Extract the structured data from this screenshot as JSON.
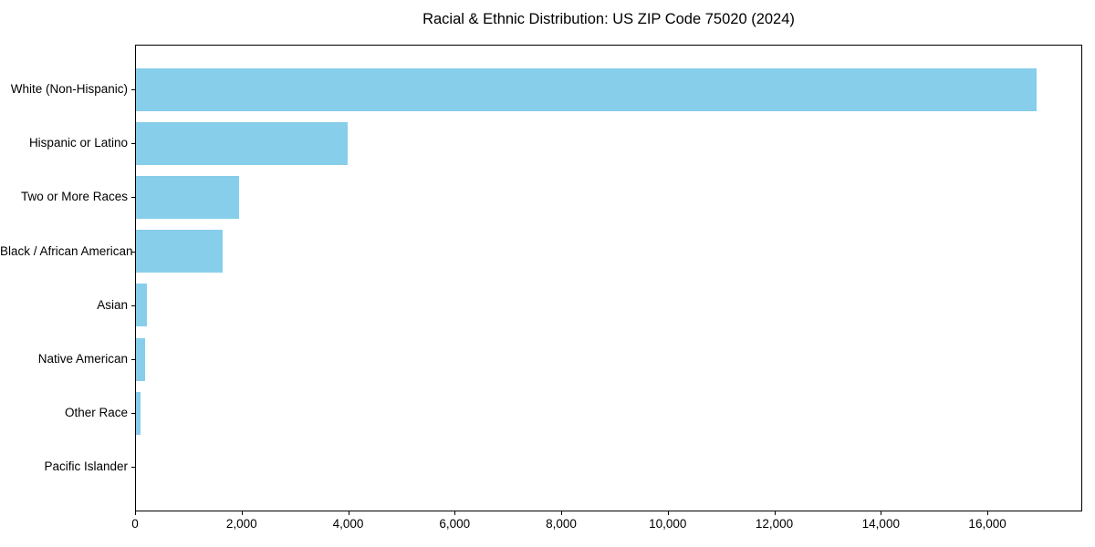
{
  "title": "Racial & Ethnic Distribution: US ZIP Code 75020 (2024)",
  "chart_data": {
    "type": "bar",
    "orientation": "horizontal",
    "title": "Racial & Ethnic Distribution: US ZIP Code 75020 (2024)",
    "categories": [
      "White (Non-Hispanic)",
      "Hispanic or Latino",
      "Two or More Races",
      "Black / African American",
      "Asian",
      "Native American",
      "Other Race",
      "Pacific Islander"
    ],
    "values": [
      16925,
      3990,
      1950,
      1650,
      215,
      180,
      105,
      0
    ],
    "xlabel": "",
    "ylabel": "",
    "xlim": [
      0,
      17780
    ],
    "xticks": [
      0,
      2000,
      4000,
      6000,
      8000,
      10000,
      12000,
      14000,
      16000
    ],
    "xtick_labels": [
      "0",
      "2,000",
      "4,000",
      "6,000",
      "8,000",
      "10,000",
      "12,000",
      "14,000",
      "16,000"
    ],
    "bar_color": "#87CEEB",
    "spine_color": "#000000",
    "text_color": "#000000",
    "background": "#FFFFFF",
    "grid": false,
    "legend": null
  }
}
